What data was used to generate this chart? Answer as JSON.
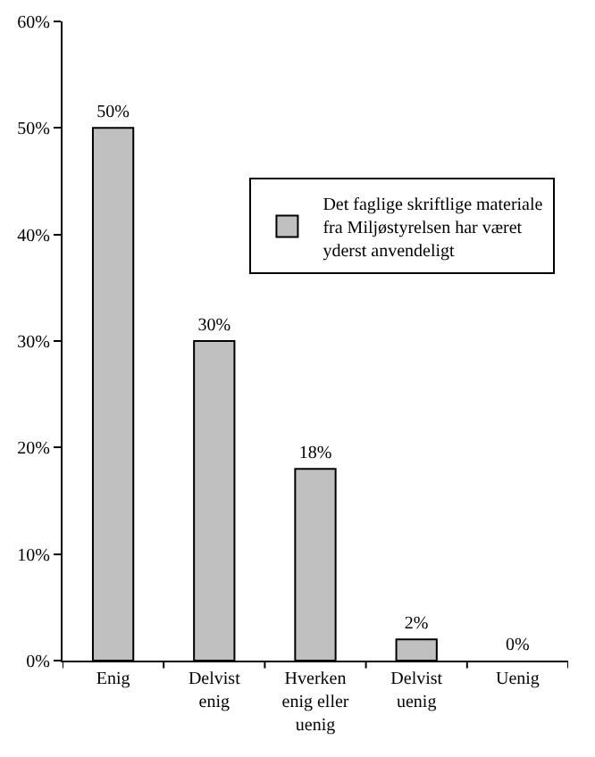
{
  "chart_data": {
    "type": "bar",
    "categories": [
      "Enig",
      "Delvist enig",
      "Hverken enig eller uenig",
      "Delvist uenig",
      "Uenig"
    ],
    "series": [
      {
        "name": "Det faglige skriftlige materiale fra Miljøstyrelsen har været yderst anvendeligt",
        "color": "#c0c0c0",
        "values": [
          50,
          30,
          18,
          2,
          0
        ],
        "value_labels": [
          "50%",
          "30%",
          "18%",
          "2%",
          "0%"
        ]
      }
    ],
    "ylim": [
      0,
      60
    ],
    "yticks": [
      {
        "value": 0,
        "label": "0%"
      },
      {
        "value": 10,
        "label": "10%"
      },
      {
        "value": 20,
        "label": "20%"
      },
      {
        "value": 30,
        "label": "30%"
      },
      {
        "value": 40,
        "label": "40%"
      },
      {
        "value": 50,
        "label": "50%"
      },
      {
        "value": 60,
        "label": "60%"
      }
    ],
    "grid": false,
    "legend": "right"
  }
}
